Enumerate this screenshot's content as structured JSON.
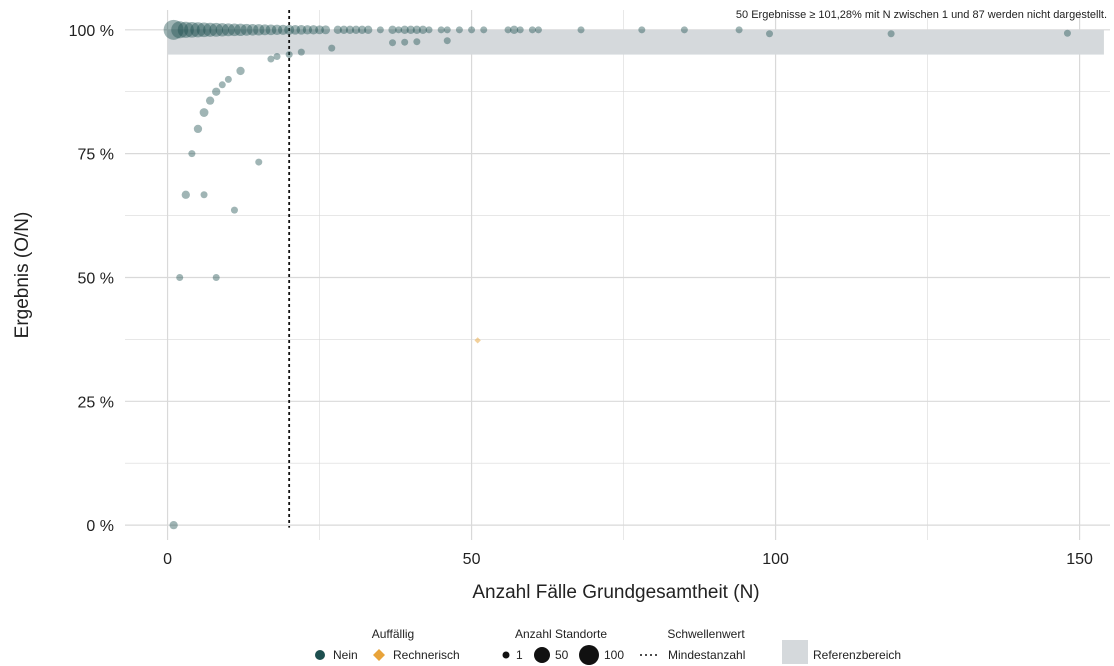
{
  "chart_data": {
    "type": "scatter",
    "note": "50 Ergebnisse ≥ 101,28% mit N zwischen 1 und 87 werden nicht dargestellt.",
    "xlabel": "Anzahl Fälle Grundgesamtheit (N)",
    "ylabel": "Ergebnis (O/N)",
    "xlim": [
      -7,
      155
    ],
    "ylim": [
      -3,
      104
    ],
    "x_ticks": [
      0,
      50,
      100,
      150
    ],
    "x_tick_labels": [
      "0",
      "50",
      "100",
      "150"
    ],
    "y_ticks": [
      0,
      25,
      50,
      75,
      100
    ],
    "y_tick_labels": [
      "0 %",
      "25 %",
      "50 %",
      "75 %",
      "100 %"
    ],
    "grid": true,
    "reference_range": [
      95,
      100
    ],
    "threshold": {
      "label": "Mindestanzahl",
      "x": 20
    },
    "colors": {
      "nein": "#1d4f4f",
      "rechnerisch": "#e8a33a",
      "reference": "#d5d9dc",
      "grid": "#d9d9d9"
    },
    "series": [
      {
        "name": "Nein",
        "points": [
          [
            1,
            100,
            100
          ],
          [
            2,
            100,
            60
          ],
          [
            3,
            100,
            50
          ],
          [
            4,
            100,
            45
          ],
          [
            5,
            100,
            40
          ],
          [
            6,
            100,
            35
          ],
          [
            7,
            100,
            30
          ],
          [
            8,
            100,
            28
          ],
          [
            9,
            100,
            25
          ],
          [
            10,
            100,
            22
          ],
          [
            11,
            100,
            20
          ],
          [
            12,
            100,
            18
          ],
          [
            13,
            100,
            15
          ],
          [
            14,
            100,
            13
          ],
          [
            15,
            100,
            12
          ],
          [
            16,
            100,
            10
          ],
          [
            17,
            100,
            9
          ],
          [
            18,
            100,
            8
          ],
          [
            19,
            100,
            7
          ],
          [
            20,
            100,
            6
          ],
          [
            21,
            100,
            5
          ],
          [
            22,
            100,
            5
          ],
          [
            23,
            100,
            4
          ],
          [
            24,
            100,
            4
          ],
          [
            25,
            100,
            3
          ],
          [
            26,
            100,
            3
          ],
          [
            28,
            100,
            2
          ],
          [
            29,
            100,
            2
          ],
          [
            30,
            100,
            2
          ],
          [
            31,
            100,
            2
          ],
          [
            32,
            100,
            2
          ],
          [
            33,
            100,
            2
          ],
          [
            35,
            100,
            1
          ],
          [
            37,
            100,
            2
          ],
          [
            38,
            100,
            1
          ],
          [
            39,
            100,
            2
          ],
          [
            40,
            100,
            2
          ],
          [
            41,
            100,
            2
          ],
          [
            42,
            100,
            2
          ],
          [
            43,
            100,
            1
          ],
          [
            45,
            100,
            1
          ],
          [
            46,
            100,
            1
          ],
          [
            48,
            100,
            1
          ],
          [
            50,
            100,
            1
          ],
          [
            52,
            100,
            1
          ],
          [
            56,
            100,
            1
          ],
          [
            57,
            100,
            2
          ],
          [
            58,
            100,
            1
          ],
          [
            60,
            100,
            1
          ],
          [
            61,
            100,
            1
          ],
          [
            68,
            100,
            1
          ],
          [
            78,
            100,
            1
          ],
          [
            85,
            100,
            1
          ],
          [
            94,
            100,
            1
          ],
          [
            99,
            99.2,
            1
          ],
          [
            119,
            99.2,
            1
          ],
          [
            148,
            99.3,
            1
          ],
          [
            37,
            97.4,
            1
          ],
          [
            39,
            97.5,
            1
          ],
          [
            41,
            97.6,
            1
          ],
          [
            46,
            97.8,
            1
          ],
          [
            27,
            96.3,
            1
          ],
          [
            22,
            95.5,
            1
          ],
          [
            20,
            95,
            1
          ],
          [
            18,
            94.6,
            1
          ],
          [
            17,
            94.1,
            1
          ],
          [
            12,
            91.7,
            2
          ],
          [
            10,
            90,
            1
          ],
          [
            9,
            88.9,
            1
          ],
          [
            8,
            87.5,
            2
          ],
          [
            7,
            85.7,
            2
          ],
          [
            6,
            83.3,
            3
          ],
          [
            5,
            80,
            2
          ],
          [
            4,
            75,
            1
          ],
          [
            15,
            73.3,
            1
          ],
          [
            3,
            66.7,
            2
          ],
          [
            6,
            66.7,
            1
          ],
          [
            11,
            63.6,
            1
          ],
          [
            2,
            50,
            1
          ],
          [
            8,
            50,
            1
          ],
          [
            1,
            0,
            2
          ]
        ]
      },
      {
        "name": "Rechnerisch",
        "points": [
          [
            51,
            37.3,
            1
          ]
        ]
      }
    ],
    "legend": {
      "auffaellig": {
        "title": "Auffällig",
        "items": [
          "Nein",
          "Rechnerisch"
        ]
      },
      "anzahl": {
        "title": "Anzahl Standorte",
        "items": [
          "1",
          "50",
          "100"
        ]
      },
      "schwellenwert": {
        "title": "Schwellenwert",
        "items": [
          "Mindestanzahl"
        ]
      },
      "referenz": {
        "label": "Referenzbereich"
      }
    }
  }
}
